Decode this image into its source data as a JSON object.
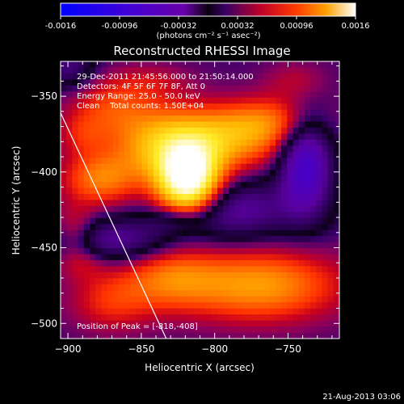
{
  "chart_data": {
    "type": "heatmap",
    "title": "Reconstructed RHESSI Image",
    "xlabel": "Heliocentric X (arcsec)",
    "ylabel": "Heliocentric Y (arcsec)",
    "xlim": [
      -905,
      -715
    ],
    "ylim": [
      -510,
      -327
    ],
    "xticks": [
      -900,
      -850,
      -800,
      -750
    ],
    "yticks": [
      -350,
      -400,
      -450,
      -500
    ],
    "colorbar": {
      "label": "(photons cm⁻² s⁻¹ asec⁻²)",
      "range": [
        -0.0016,
        0.0016
      ],
      "ticks": [
        "-0.0016",
        "-0.00096",
        "-0.00032",
        "0.00032",
        "0.00096",
        "0.0016"
      ]
    },
    "annotations": [
      "29-Dec-2011 21:45:56.000 to 21:50:14.000",
      "Detectors: 4F 5F 6F 7F 8F, Att 0",
      "Energy Range: 25.0 - 50.0 keV",
      "Clean    Total counts: 1.50E+04"
    ],
    "peak_label": "Position of Peak = [-818,-408]",
    "peak": {
      "x": -818,
      "y": -408
    },
    "limb_line": [
      [
        -905,
        -361
      ],
      [
        -833,
        -510
      ]
    ],
    "sources": [
      {
        "x": -818,
        "y": -407,
        "sx": 15,
        "sy": 16,
        "amp": 0.0016
      },
      {
        "x": -835,
        "y": -382,
        "sx": 26,
        "sy": 17,
        "amp": 0.00075
      },
      {
        "x": -790,
        "y": -378,
        "sx": 28,
        "sy": 14,
        "amp": 0.0006
      },
      {
        "x": -760,
        "y": -366,
        "sx": 24,
        "sy": 11,
        "amp": 0.0004
      },
      {
        "x": -878,
        "y": -405,
        "sx": 18,
        "sy": 12,
        "amp": 0.00055
      },
      {
        "x": -870,
        "y": -357,
        "sx": 20,
        "sy": 12,
        "amp": 0.00035
      },
      {
        "x": -890,
        "y": -375,
        "sx": 12,
        "sy": 10,
        "amp": 0.00025
      },
      {
        "x": -745,
        "y": -340,
        "sx": 15,
        "sy": 9,
        "amp": 0.0002
      },
      {
        "x": -770,
        "y": -475,
        "sx": 38,
        "sy": 16,
        "amp": 0.0007
      },
      {
        "x": -830,
        "y": -470,
        "sx": 22,
        "sy": 14,
        "amp": 0.00045
      },
      {
        "x": -870,
        "y": -485,
        "sx": 20,
        "sy": 14,
        "amp": 0.00035
      },
      {
        "x": -890,
        "y": -460,
        "sx": 12,
        "sy": 8,
        "amp": 0.0002
      },
      {
        "x": -845,
        "y": -340,
        "sx": 20,
        "sy": 8,
        "amp": 0.0002
      },
      {
        "x": -825,
        "y": -432,
        "sx": 14,
        "sy": 6,
        "amp": -0.00025
      },
      {
        "x": -895,
        "y": -440,
        "sx": 10,
        "sy": 12,
        "amp": 0.00035
      },
      {
        "x": -738,
        "y": -395,
        "sx": 12,
        "sy": 22,
        "amp": -0.0009
      },
      {
        "x": -790,
        "y": -425,
        "sx": 32,
        "sy": 14,
        "amp": -0.00055
      },
      {
        "x": -870,
        "y": -445,
        "sx": 28,
        "sy": 10,
        "amp": -0.0005
      },
      {
        "x": -900,
        "y": -330,
        "sx": 12,
        "sy": 10,
        "amp": -0.0004
      }
    ]
  },
  "footer": {
    "timestamp": "21-Aug-2013 03:06"
  }
}
